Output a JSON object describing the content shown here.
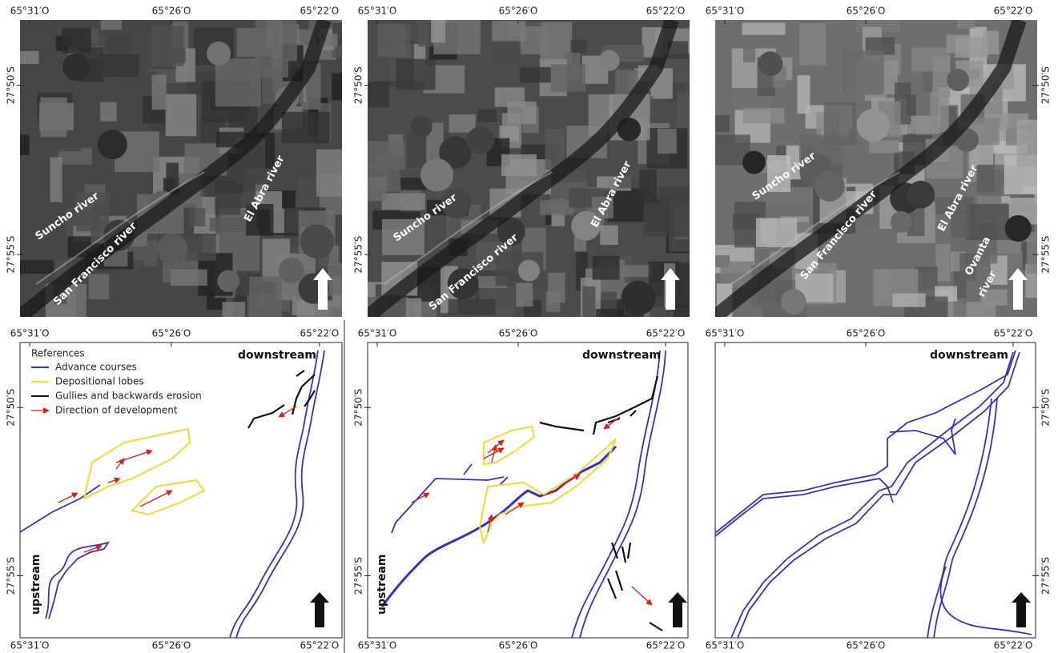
{
  "coordinates": {
    "longitude": [
      "65°31′O",
      "65°26′O",
      "65°22′O"
    ],
    "latitude": [
      "27°50′S",
      "27°55′S"
    ]
  },
  "images": [
    {
      "rivers": [
        "Suncho river",
        "San Francisco river",
        "El Abra river"
      ]
    },
    {
      "rivers": [
        "Suncho river",
        "San Francisco river",
        "El Abra river"
      ]
    },
    {
      "rivers": [
        "Suncho river",
        "San Francisco river",
        "El Abra river"
      ],
      "extra_river": [
        "Ovanta",
        "river"
      ]
    }
  ],
  "maps": {
    "legend": {
      "title": "References",
      "items": [
        "Advance courses",
        "Depositional lobes",
        "Gullies and backwards erosion",
        "Direction of development"
      ]
    },
    "downstream": "downstream",
    "upstream": "upstream"
  }
}
